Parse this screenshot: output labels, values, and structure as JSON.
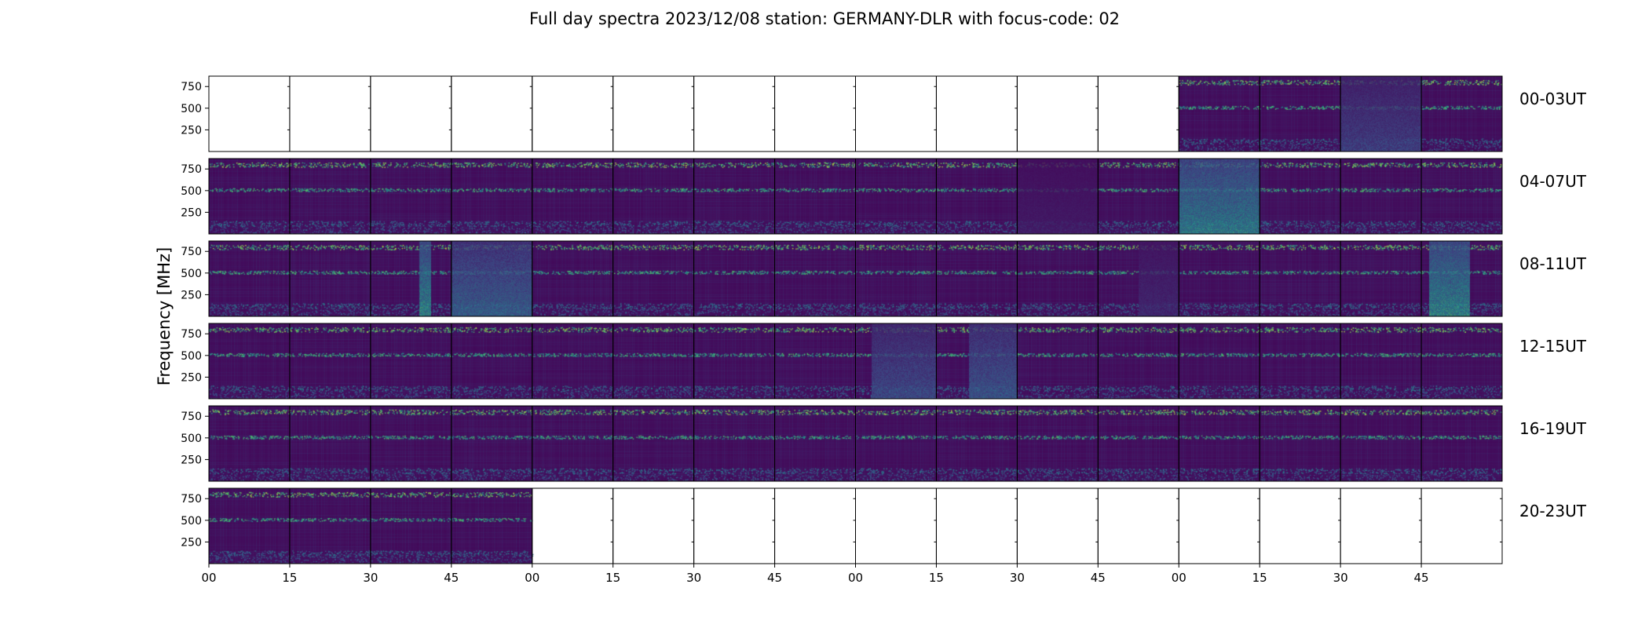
{
  "chart_data": {
    "type": "heatmap",
    "title": "Full day spectra 2023/12/08 station: GERMANY-DLR with focus-code: 02",
    "ylabel": "Frequency [MHz]",
    "xlabel": "",
    "yticks": [
      250,
      500,
      750
    ],
    "ylim": [
      0,
      870
    ],
    "xticks": [
      "00",
      "15",
      "30",
      "45",
      "00",
      "15",
      "30",
      "45",
      "00",
      "15",
      "30",
      "45",
      "00",
      "15",
      "30",
      "45"
    ],
    "colormap": [
      "#440154",
      "#3b528b",
      "#21918c",
      "#5ec962",
      "#fde725"
    ],
    "rows": [
      {
        "label": "00-03UT",
        "panels": [
          0,
          0,
          0,
          0,
          0,
          0,
          0,
          0,
          0,
          0,
          0,
          0,
          1,
          1,
          1,
          1
        ],
        "bright_bands": [
          [
            12,
            13,
            0.0,
            0.0
          ],
          [
            14,
            15,
            0.25,
            0.12
          ]
        ]
      },
      {
        "label": "04-07UT",
        "panels": [
          1,
          1,
          1,
          1,
          1,
          1,
          1,
          1,
          1,
          1,
          1,
          1,
          1,
          1,
          1,
          1
        ],
        "bright_bands": [
          [
            12,
            13,
            0.55,
            0.3
          ],
          [
            10,
            11,
            0.1,
            0.15
          ]
        ]
      },
      {
        "label": "08-11UT",
        "panels": [
          1,
          1,
          1,
          1,
          1,
          1,
          1,
          1,
          1,
          1,
          1,
          1,
          1,
          1,
          1,
          1
        ],
        "bright_bands": [
          [
            3,
            4,
            0.4,
            0.25
          ],
          [
            2.6,
            2.75,
            0.6,
            0.2
          ],
          [
            15.1,
            15.6,
            0.6,
            0.2
          ],
          [
            11.5,
            12,
            0.15,
            0.2
          ]
        ]
      },
      {
        "label": "12-15UT",
        "panels": [
          1,
          1,
          1,
          1,
          1,
          1,
          1,
          1,
          1,
          1,
          1,
          1,
          1,
          1,
          1,
          1
        ],
        "bright_bands": [
          [
            9.4,
            10,
            0.35,
            0.25
          ],
          [
            8.2,
            9,
            0.3,
            0.2
          ]
        ]
      },
      {
        "label": "16-19UT",
        "panels": [
          1,
          1,
          1,
          1,
          1,
          1,
          1,
          1,
          1,
          1,
          1,
          1,
          1,
          1,
          1,
          1
        ],
        "bright_bands": []
      },
      {
        "label": "20-23UT",
        "panels": [
          1,
          1,
          1,
          1,
          0,
          0,
          0,
          0,
          0,
          0,
          0,
          0,
          0,
          0,
          0,
          0
        ],
        "bright_bands": []
      }
    ]
  }
}
